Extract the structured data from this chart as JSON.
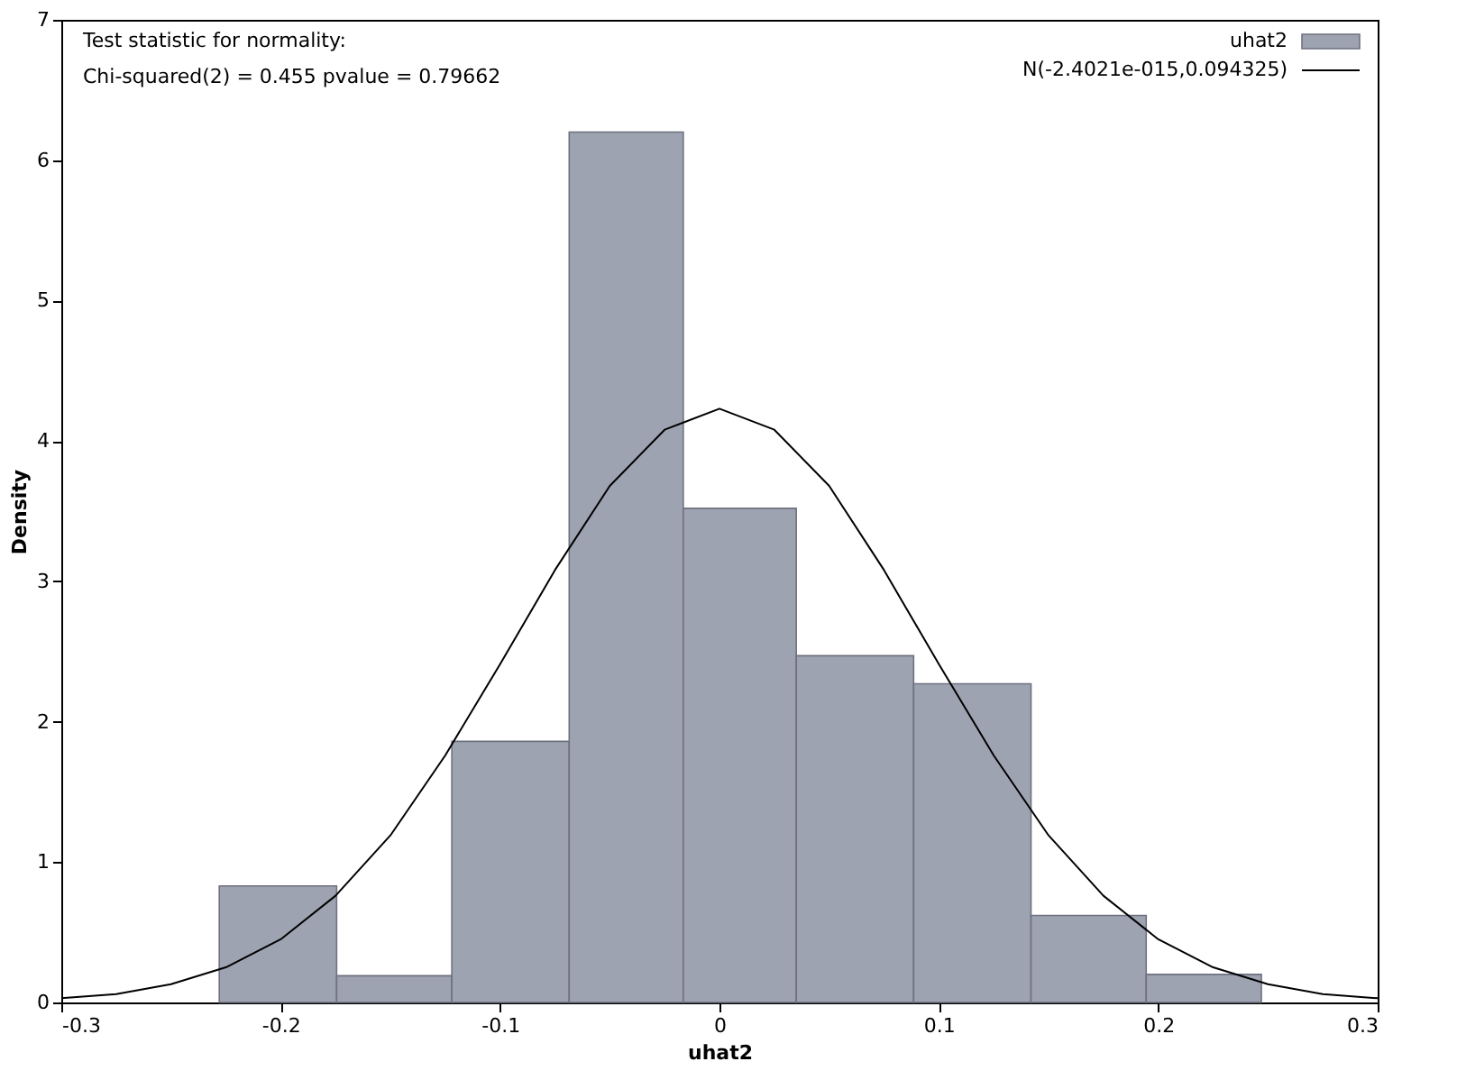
{
  "chart_data": {
    "type": "histogram",
    "xlabel": "uhat2",
    "ylabel": "Density",
    "xlim": [
      -0.3,
      0.3
    ],
    "xticks": [
      -0.3,
      -0.2,
      -0.1,
      0,
      0.1,
      0.2,
      0.3
    ],
    "ylim": [
      0,
      7
    ],
    "yticks": [
      0,
      1,
      2,
      3,
      4,
      5,
      6,
      7
    ],
    "grid": false,
    "legend": "top right",
    "annotations": [
      "Test statistic for normality:",
      "Chi-squared(2) = 0.455 pvalue = 0.79662"
    ],
    "series": [
      {
        "name": "uhat2",
        "color": "#9ea3b1",
        "bins": [
          -0.228,
          -0.1745,
          -0.122,
          -0.0685,
          -0.0165,
          0.035,
          0.0885,
          0.142,
          0.1945,
          0.247
        ],
        "values": [
          0.83,
          0.19,
          1.86,
          6.2,
          3.52,
          2.47,
          2.27,
          0.62,
          0.2
        ]
      },
      {
        "type": "line",
        "name": "N(-2.4021e-015,0.094325)",
        "color": "#000000",
        "x": [
          -0.3,
          -0.275,
          -0.25,
          -0.225,
          -0.2,
          -0.175,
          -0.15,
          -0.125,
          -0.1,
          -0.075,
          -0.05,
          -0.025,
          0,
          0.025,
          0.05,
          0.075,
          0.1,
          0.125,
          0.15,
          0.175,
          0.2,
          0.225,
          0.25,
          0.275,
          0.3
        ],
        "values": [
          0.03,
          0.06,
          0.13,
          0.25,
          0.45,
          0.76,
          1.19,
          1.76,
          2.41,
          3.08,
          3.68,
          4.08,
          4.23,
          4.08,
          3.68,
          3.08,
          2.41,
          1.76,
          1.19,
          0.76,
          0.45,
          0.25,
          0.13,
          0.06,
          0.03
        ]
      }
    ]
  }
}
